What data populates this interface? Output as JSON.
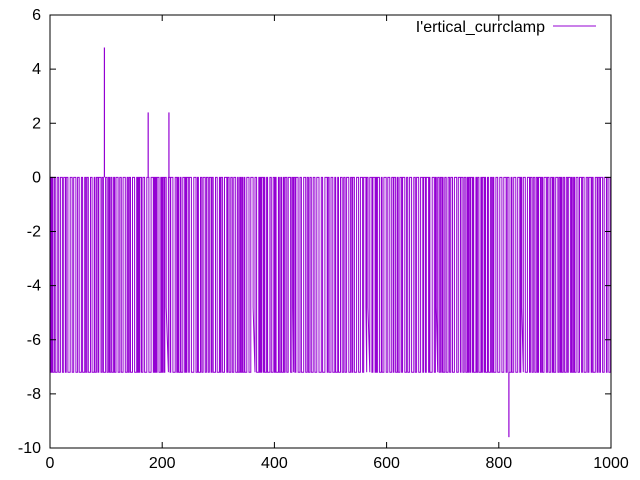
{
  "chart_data": {
    "type": "line",
    "title": "",
    "xlabel": "",
    "ylabel": "",
    "xlim": [
      0,
      1000
    ],
    "ylim": [
      -10,
      6
    ],
    "x_ticks": [
      0,
      200,
      400,
      600,
      800,
      1000
    ],
    "y_ticks": [
      6,
      4,
      2,
      0,
      -2,
      -4,
      -6,
      -8,
      -10
    ],
    "grid": false,
    "legend": "top-right",
    "series": [
      {
        "name": "I'ertical_currclamp",
        "color": "#9400d3",
        "x_range": [
          0,
          1000
        ],
        "baseline_high": 0,
        "baseline_low": -7.2,
        "intermediate_level": -4.8,
        "spikes": [
          {
            "x": 97,
            "y": 4.8
          },
          {
            "x": 175,
            "y": 2.4
          },
          {
            "x": 212,
            "y": 2.4
          },
          {
            "x": 818,
            "y": -9.6
          }
        ]
      }
    ]
  }
}
